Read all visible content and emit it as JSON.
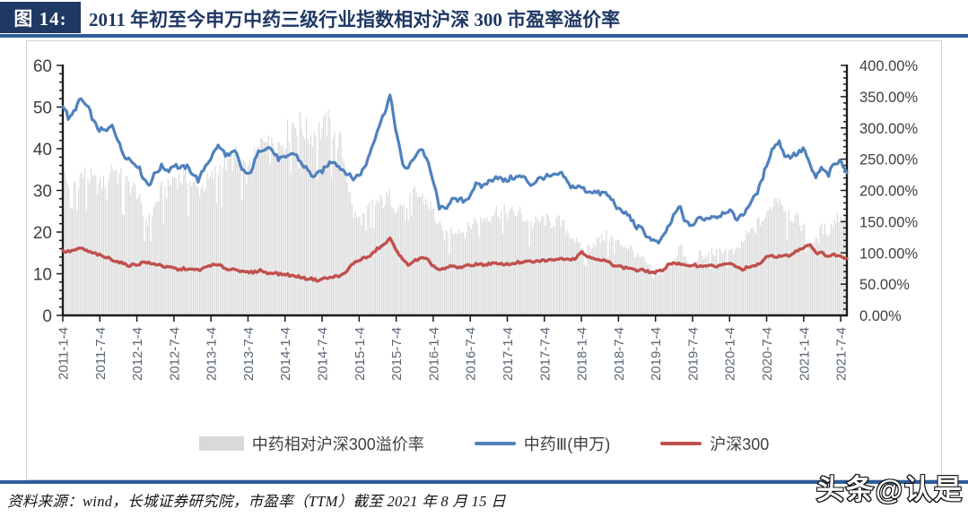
{
  "header": {
    "figure_label": "图 14:",
    "title": "2011 年初至今申万中药三级行业指数相对沪深 300 市盈率溢价率"
  },
  "footer": {
    "source": "资料来源：wind，长城证券研究院，市盈率（TTM）截至 2021 年 8 月 15 日"
  },
  "watermark": {
    "text": "头条@认是"
  },
  "colors": {
    "accent_navy": "#1F3864",
    "rule_blue": "#2E5C9A",
    "premium_gray": "#D9D9D9",
    "line_blue": "#4F81BD",
    "line_red": "#C0504D",
    "axis_text": "#3f3f3f",
    "x_tick_text": "#5a6673"
  },
  "chart_data": {
    "type": "combo",
    "title": "2011 年初至今申万中药三级行业指数相对沪深 300 市盈率溢价率",
    "x_start": "2011-01",
    "x_step": "1 month",
    "n_points": 128,
    "axes": {
      "left": {
        "min": 0,
        "max": 60,
        "ticks": [
          0,
          10,
          20,
          30,
          40,
          50,
          60
        ],
        "minor_step": 2
      },
      "right": {
        "min": 0,
        "max": 400,
        "tick_step": 50,
        "minor_step": 10,
        "tick_labels": [
          "0.00%",
          "50.00%",
          "100.00%",
          "150.00%",
          "200.00%",
          "250.00%",
          "300.00%",
          "350.00%",
          "400.00%"
        ]
      },
      "x": {
        "tick_labels": [
          "2011-1-4",
          "2011-7-4",
          "2012-1-4",
          "2012-7-4",
          "2013-1-4",
          "2013-7-4",
          "2014-1-4",
          "2014-7-4",
          "2015-1-4",
          "2015-7-4",
          "2016-1-4",
          "2016-7-4",
          "2017-1-4",
          "2017-7-4",
          "2018-1-4",
          "2018-7-4",
          "2019-1-4",
          "2019-7-4",
          "2020-1-4",
          "2020-7-4",
          "2021-1-4",
          "2021-7-4"
        ],
        "tick_month_interval": 6
      }
    },
    "series": [
      {
        "name": "中药相对沪深300溢价率",
        "type": "area-bars",
        "axis": "right",
        "unit": "%",
        "color": "#D9D9D9",
        "values": [
          226,
          209,
          213,
          225,
          223,
          214,
          207,
          219,
          241,
          224,
          213,
          208,
          199,
          158,
          152,
          176,
          200,
          200,
          223,
          218,
          221,
          209,
          201,
          209,
          217,
          232,
          243,
          245,
          253,
          233,
          228,
          248,
          270,
          297,
          287,
          275,
          283,
          306,
          309,
          300,
          286,
          294,
          297,
          306,
          298,
          274,
          224,
          164,
          152,
          161,
          176,
          181,
          182,
          190,
          175,
          177,
          185,
          196,
          190,
          182,
          167,
          141,
          126,
          137,
          139,
          133,
          142,
          156,
          154,
          160,
          168,
          166,
          164,
          164,
          164,
          154,
          144,
          150,
          154,
          148,
          152,
          145,
          133,
          121,
          104,
          108,
          117,
          120,
          127,
          124,
          116,
          113,
          108,
          94,
          90,
          76,
          72,
          67,
          75,
          88,
          113,
          86,
          76,
          99,
          92,
          102,
          99,
          105,
          102,
          99,
          114,
          130,
          137,
          152,
          157,
          183,
          192,
          171,
          160,
          152,
          142,
          112,
          117,
          140,
          134,
          152,
          161,
          150
        ]
      },
      {
        "name": "中药Ⅲ(申万)",
        "type": "line",
        "axis": "left",
        "color": "#4F81BD",
        "values": [
          50.5,
          47,
          49.5,
          52,
          50,
          46.5,
          44.5,
          44,
          46,
          41.5,
          38.5,
          37,
          36.5,
          33,
          31.5,
          34,
          36,
          34.5,
          36.5,
          35,
          36,
          34,
          32.5,
          35.5,
          38,
          40.5,
          39.5,
          38,
          39.5,
          35,
          33.5,
          36.5,
          40,
          40.5,
          39.5,
          37.5,
          37.5,
          39,
          38,
          36,
          34,
          33.5,
          34.5,
          36.5,
          37,
          35.5,
          34,
          33,
          33.5,
          36,
          40,
          45,
          48,
          53,
          44,
          36.5,
          35,
          38.5,
          40,
          37.5,
          32,
          26,
          25.5,
          28,
          27.5,
          27.5,
          29,
          31.5,
          31,
          32,
          33.5,
          32.5,
          32.5,
          33,
          33.5,
          32.5,
          31.5,
          32.5,
          33.5,
          33,
          34,
          33.5,
          31.5,
          30.5,
          31,
          29.5,
          30,
          29,
          29.5,
          27.5,
          25.5,
          24.5,
          23.5,
          21,
          20.5,
          18.5,
          17.5,
          18,
          21,
          24,
          26,
          22,
          21.5,
          23.5,
          23,
          24,
          23.5,
          25,
          25,
          23.5,
          23.5,
          26.5,
          28,
          31.5,
          36,
          40.5,
          41.5,
          38.5,
          38,
          39,
          40,
          36,
          33,
          35.5,
          33.5,
          36.5,
          37,
          34.5
        ]
      },
      {
        "name": "沪深300",
        "type": "line",
        "axis": "left",
        "color": "#C0504D",
        "values": [
          15.5,
          15.2,
          15.8,
          16,
          15.5,
          14.8,
          14.5,
          13.8,
          13.5,
          12.8,
          12.3,
          12,
          12.2,
          12.8,
          12.5,
          12.3,
          12,
          11.5,
          11.3,
          11,
          11.2,
          11,
          10.8,
          11.5,
          12,
          12.2,
          11.5,
          11,
          11.2,
          10.5,
          10.2,
          10.5,
          10.8,
          10.2,
          10.2,
          10,
          9.8,
          9.6,
          9.3,
          9,
          8.8,
          8.5,
          8.7,
          9,
          9.3,
          9.5,
          10.5,
          12.5,
          13.3,
          13.8,
          14.5,
          16,
          17,
          18.3,
          16,
          13.2,
          12.3,
          13,
          13.8,
          13.3,
          12,
          10.8,
          11.3,
          11.8,
          11.5,
          11.8,
          12,
          12.3,
          12.2,
          12.3,
          12.5,
          12.2,
          12.3,
          12.5,
          12.7,
          12.8,
          12.9,
          13,
          13.2,
          13.3,
          13.5,
          13.7,
          13.5,
          13.8,
          15.2,
          14.2,
          13.8,
          13.2,
          13,
          12.3,
          11.8,
          11.5,
          11.3,
          10.8,
          10.8,
          10.5,
          10.2,
          10.8,
          12,
          12.8,
          12.2,
          11.8,
          12.2,
          11.8,
          12,
          11.9,
          11.8,
          12.2,
          12.4,
          11.8,
          11,
          11.5,
          11.8,
          12.5,
          14,
          14.3,
          14.2,
          14.2,
          14.6,
          15.5,
          16.5,
          17,
          15.2,
          14.8,
          14.3,
          14.5,
          14.2,
          13.8
        ]
      }
    ],
    "legend_position": "bottom"
  }
}
